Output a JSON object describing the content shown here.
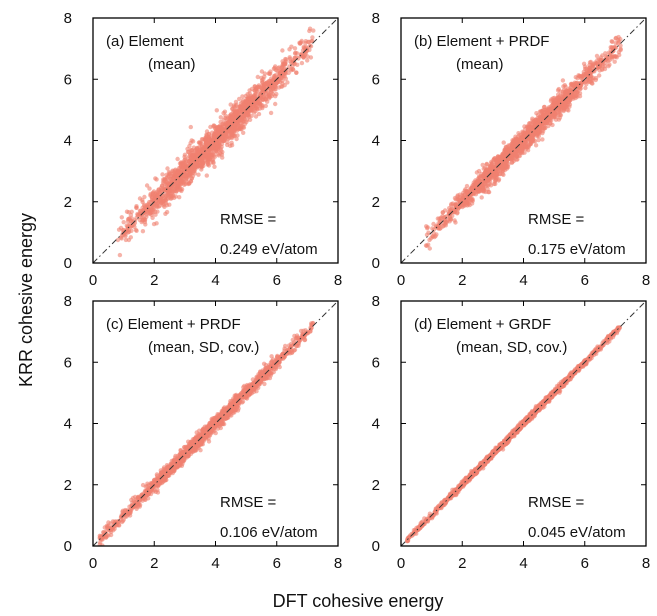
{
  "figure": {
    "ylabel": "KRR cohesive energy",
    "xlabel": "DFT cohesive energy"
  },
  "chart_data": [
    {
      "type": "scatter",
      "annotation_lines": [
        "(a) Element",
        "(mean)"
      ],
      "rmse_label": "RMSE =",
      "rmse_value": "0.249 eV/atom",
      "rmse": 0.249,
      "xlim": [
        0,
        8
      ],
      "ylim": [
        0,
        8
      ],
      "xticks": [
        "0",
        "2",
        "4",
        "6",
        "8"
      ],
      "yticks": [
        "0",
        "2",
        "4",
        "6",
        "8"
      ],
      "x_range": [
        0.8,
        7.2
      ],
      "grid": false,
      "point_color": "#f08070",
      "reference_line": "y = x"
    },
    {
      "type": "scatter",
      "annotation_lines": [
        "(b) Element + PRDF",
        "(mean)"
      ],
      "rmse_label": "RMSE =",
      "rmse_value": "0.175 eV/atom",
      "rmse": 0.175,
      "xlim": [
        0,
        8
      ],
      "ylim": [
        0,
        8
      ],
      "xticks": [
        "0",
        "2",
        "4",
        "6",
        "8"
      ],
      "yticks": [
        "0",
        "2",
        "4",
        "6",
        "8"
      ],
      "x_range": [
        0.8,
        7.2
      ],
      "grid": false,
      "point_color": "#f08070",
      "reference_line": "y = x"
    },
    {
      "type": "scatter",
      "annotation_lines": [
        "(c) Element + PRDF",
        "(mean, SD, cov.)"
      ],
      "rmse_label": "RMSE =",
      "rmse_value": "0.106 eV/atom",
      "rmse": 0.106,
      "xlim": [
        0,
        8
      ],
      "ylim": [
        0,
        8
      ],
      "xticks": [
        "0",
        "2",
        "4",
        "6",
        "8"
      ],
      "yticks": [
        "0",
        "2",
        "4",
        "6",
        "8"
      ],
      "x_range": [
        0.2,
        7.2
      ],
      "grid": false,
      "point_color": "#f08070",
      "reference_line": "y = x"
    },
    {
      "type": "scatter",
      "annotation_lines": [
        "(d) Element + GRDF",
        "(mean, SD, cov.)"
      ],
      "rmse_label": "RMSE =",
      "rmse_value": "0.045 eV/atom",
      "rmse": 0.045,
      "xlim": [
        0,
        8
      ],
      "ylim": [
        0,
        8
      ],
      "xticks": [
        "0",
        "2",
        "4",
        "6",
        "8"
      ],
      "yticks": [
        "0",
        "2",
        "4",
        "6",
        "8"
      ],
      "x_range": [
        0.2,
        7.2
      ],
      "grid": false,
      "point_color": "#f08070",
      "reference_line": "y = x"
    }
  ]
}
